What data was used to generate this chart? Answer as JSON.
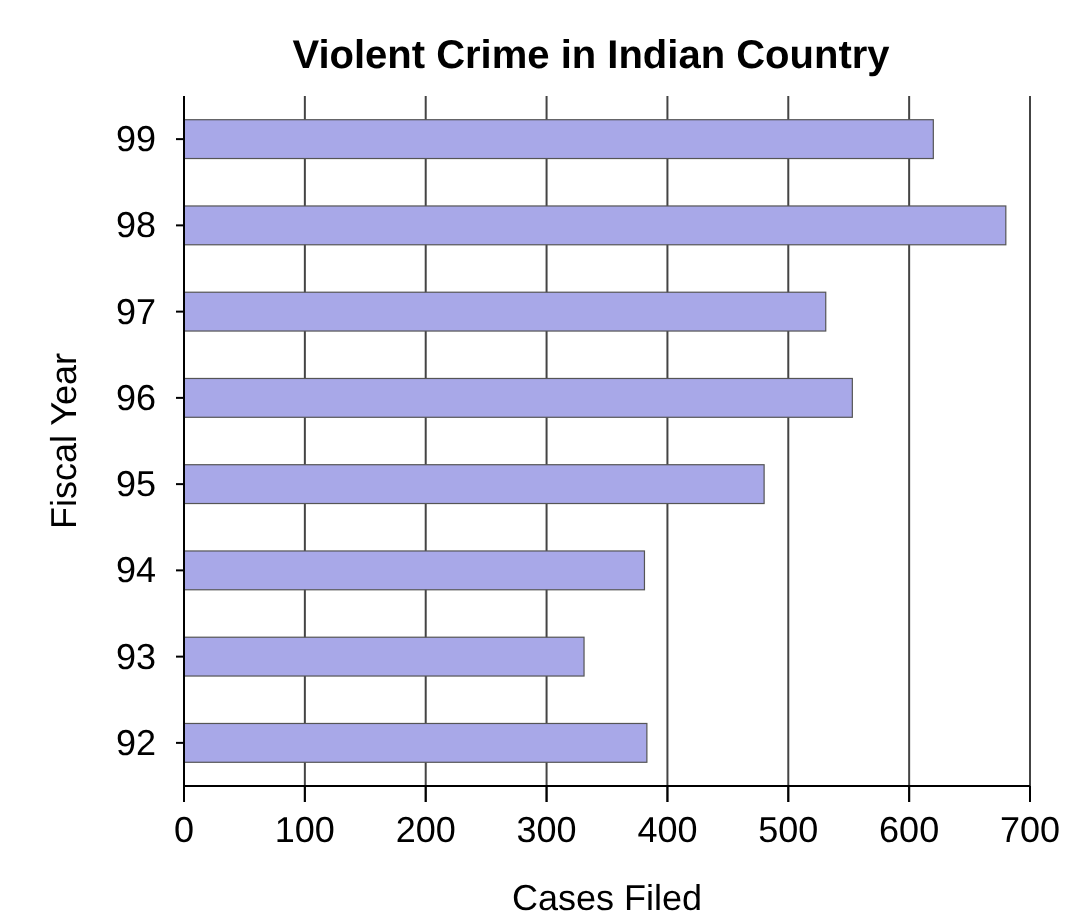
{
  "chart_data": {
    "type": "bar",
    "orientation": "horizontal",
    "title": "Violent Crime in Indian Country",
    "xlabel": "Cases Filed",
    "ylabel": "Fiscal Year",
    "categories": [
      "99",
      "98",
      "97",
      "96",
      "95",
      "94",
      "93",
      "92"
    ],
    "values": [
      620,
      680,
      531,
      553,
      480,
      381,
      331,
      383
    ],
    "color": "#a8a8e8",
    "xlim": [
      0,
      700
    ],
    "xticks": [
      0,
      100,
      200,
      300,
      400,
      500,
      600,
      700
    ],
    "grid": "x"
  }
}
